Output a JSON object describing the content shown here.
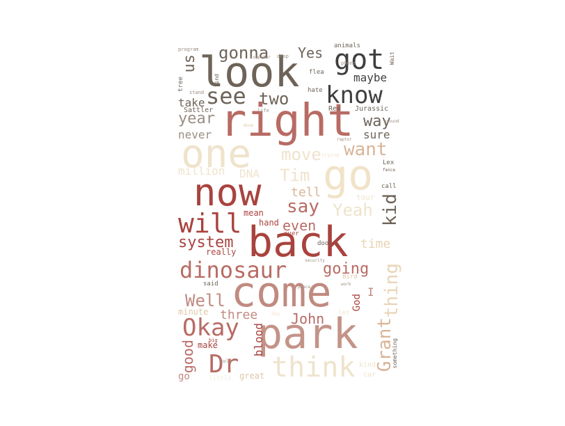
{
  "palette": {
    "dark_gray": "#3f3f3f",
    "taupe": "#6e6358",
    "brick": "#a8433e",
    "rose": "#b86b64",
    "dusty_rose": "#c08a80",
    "tan": "#d9b497",
    "sand": "#e8d5b5",
    "cream": "#efe3cc",
    "pale": "#f1ebe2"
  },
  "words": {
    "look": "look",
    "right": "right",
    "one": "one",
    "go": "go",
    "now": "now",
    "back": "back",
    "come": "come",
    "park": "park",
    "think": "think",
    "know": "know",
    "got": "got",
    "see": "see",
    "two": "two",
    "gonna": "gonna",
    "yes": "Yes",
    "us": "us",
    "maybe": "maybe",
    "way": "way",
    "year": "year",
    "want": "want",
    "move": "move",
    "tim": "Tim",
    "will": "will",
    "say": "say",
    "yeah": "Yeah",
    "kid": "kid",
    "dinosaur": "dinosaur",
    "system": "system",
    "going": "going",
    "well": "Well",
    "okay": "Okay",
    "dr": "Dr",
    "john": "John",
    "grant": "Grant",
    "thing": "thing",
    "three": "three",
    "blood": "blood",
    "good": "good",
    "even": "even",
    "tell": "tell",
    "time": "time",
    "sure": "sure",
    "never": "never",
    "take": "take",
    "million": "million",
    "dna": "DNA",
    "really": "really",
    "hand": "hand",
    "mean": "mean",
    "god": "God",
    "minute": "minute",
    "make": "make",
    "great": "great",
    "sattler": "Sattler",
    "rex": "Rex",
    "jurassic": "Jurassic",
    "animals": "animals",
    "hate": "hate",
    "flea": "flea",
    "tree": "tree",
    "lex": "Lex",
    "tour": "tour",
    "call": "call",
    "door": "door",
    "something": "something",
    "said": "said",
    "little": "little",
    "program": "program",
    "drop": "drop",
    "find": "find",
    "wait": "Wait",
    "phone": "phone",
    "computer": "computer",
    "stand": "stand",
    "let": "let",
    "fence": "fence",
    "bird": "Bird",
    "car": "car",
    "kind": "kind",
    "ever": "ever",
    "go_small": "go",
    "life": "life",
    "trying": "trying",
    "big": "big",
    "i": "I",
    "hold": "hold",
    "day": "day",
    "work": "work",
    "around": "around",
    "raptor": "raptor",
    "security": "security",
    "place": "place",
    "done": "done"
  }
}
